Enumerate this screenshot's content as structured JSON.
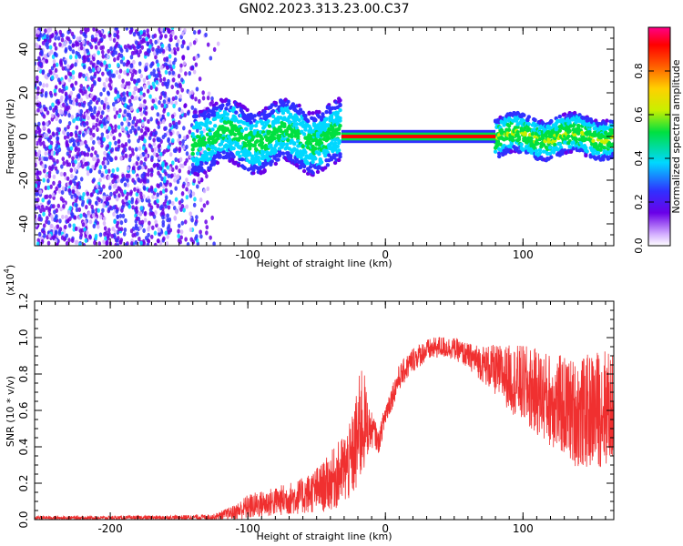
{
  "title": "GN02.2023.313.23.00.C37",
  "chart_data": [
    {
      "type": "heatmap",
      "xlabel": "Height of straight line (km)",
      "ylabel": "Frequency (Hz)",
      "xlim": [
        -255,
        166
      ],
      "ylim": [
        -50,
        50
      ],
      "xticks": [
        -200,
        -100,
        0,
        100
      ],
      "yticks": [
        -40,
        -20,
        0,
        20,
        40
      ],
      "colorbar": {
        "label": "Normalized spectral amplitude",
        "range": [
          0,
          1
        ],
        "ticks": [
          "0.0",
          "0.2",
          "0.4",
          "0.6",
          "0.8"
        ],
        "colors": [
          "#ffffff",
          "#d6b3ff",
          "#6a00e8",
          "#3030ff",
          "#00d8ff",
          "#00e040",
          "#c8f000",
          "#ffd000",
          "#ff6000",
          "#ff0000",
          "#ff0088"
        ]
      },
      "bands": [
        {
          "x_range": [
            -255,
            -120
          ],
          "description_value": "broadband noise",
          "level": 0.35
        },
        {
          "x_range": [
            -140,
            -32
          ],
          "freq_center": 0,
          "freq_halfwidth": 8,
          "level": 0.5
        },
        {
          "x_range": [
            -32,
            80
          ],
          "freq_center": 0,
          "freq_halfwidth": 2,
          "level": 0.95
        },
        {
          "x_range": [
            80,
            166
          ],
          "freq_center": 0,
          "freq_halfwidth": 5,
          "level": 0.6
        }
      ]
    },
    {
      "type": "line",
      "xlabel": "Height of straight line (km)",
      "ylabel": "SNR (10 * v/v)",
      "scale_label": "(x10",
      "scale_exp": "4",
      "scale_close": ")",
      "xlim": [
        -255,
        166
      ],
      "ylim": [
        0,
        1.2
      ],
      "xticks": [
        -200,
        -100,
        0,
        100
      ],
      "yticks": [
        "0.0",
        "0.2",
        "0.4",
        "0.6",
        "0.8",
        "1.0",
        "1.2"
      ],
      "color": "#f03030",
      "envelope": {
        "x": [
          -255,
          -200,
          -150,
          -125,
          -110,
          -100,
          -80,
          -60,
          -45,
          -35,
          -25,
          -20,
          -17,
          -12,
          -8,
          -5,
          0,
          10,
          20,
          30,
          40,
          50,
          60,
          70,
          80,
          90,
          100,
          110,
          120,
          130,
          140,
          150,
          160,
          166
        ],
        "mean": [
          0.01,
          0.01,
          0.012,
          0.015,
          0.04,
          0.07,
          0.1,
          0.13,
          0.18,
          0.24,
          0.32,
          0.45,
          0.55,
          0.5,
          0.48,
          0.42,
          0.58,
          0.78,
          0.88,
          0.93,
          0.95,
          0.94,
          0.9,
          0.86,
          0.82,
          0.78,
          0.74,
          0.7,
          0.66,
          0.62,
          0.58,
          0.6,
          0.62,
          0.6
        ],
        "noise": [
          0.01,
          0.01,
          0.012,
          0.015,
          0.04,
          0.07,
          0.08,
          0.1,
          0.14,
          0.18,
          0.22,
          0.3,
          0.35,
          0.12,
          0.08,
          0.06,
          0.07,
          0.07,
          0.07,
          0.06,
          0.06,
          0.06,
          0.07,
          0.1,
          0.14,
          0.18,
          0.22,
          0.24,
          0.26,
          0.28,
          0.3,
          0.32,
          0.33,
          0.3
        ]
      }
    }
  ]
}
